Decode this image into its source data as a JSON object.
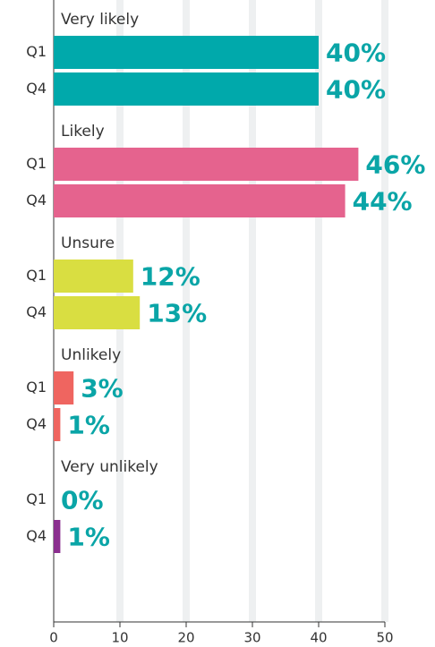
{
  "chart_data": {
    "type": "bar",
    "orientation": "horizontal",
    "groups": [
      {
        "name": "Very likely",
        "categories": [
          "Q1",
          "Q4"
        ],
        "values": [
          40,
          40
        ],
        "value_labels": [
          "40%",
          "40%"
        ],
        "colors": [
          "#00a9ab",
          "#00a9ab"
        ]
      },
      {
        "name": "Likely",
        "categories": [
          "Q1",
          "Q4"
        ],
        "values": [
          46,
          44
        ],
        "value_labels": [
          "46%",
          "44%"
        ],
        "colors": [
          "#e5638e",
          "#e5638e"
        ]
      },
      {
        "name": "Unsure",
        "categories": [
          "Q1",
          "Q4"
        ],
        "values": [
          12,
          13
        ],
        "value_labels": [
          "12%",
          "13%"
        ],
        "colors": [
          "#d9de41",
          "#d9de41"
        ]
      },
      {
        "name": "Unlikely",
        "categories": [
          "Q1",
          "Q4"
        ],
        "values": [
          3,
          1
        ],
        "value_labels": [
          "3%",
          "1%"
        ],
        "colors": [
          "#ef6560",
          "#ef6560"
        ]
      },
      {
        "name": "Very unlikely",
        "categories": [
          "Q1",
          "Q4"
        ],
        "values": [
          0,
          1
        ],
        "value_labels": [
          "0%",
          "1%"
        ],
        "colors": [
          "#8b2f8f",
          "#8b2f8f"
        ]
      }
    ],
    "xlim": [
      0,
      50
    ],
    "xticks": [
      0,
      10,
      20,
      30,
      40,
      50
    ],
    "grid": true
  }
}
